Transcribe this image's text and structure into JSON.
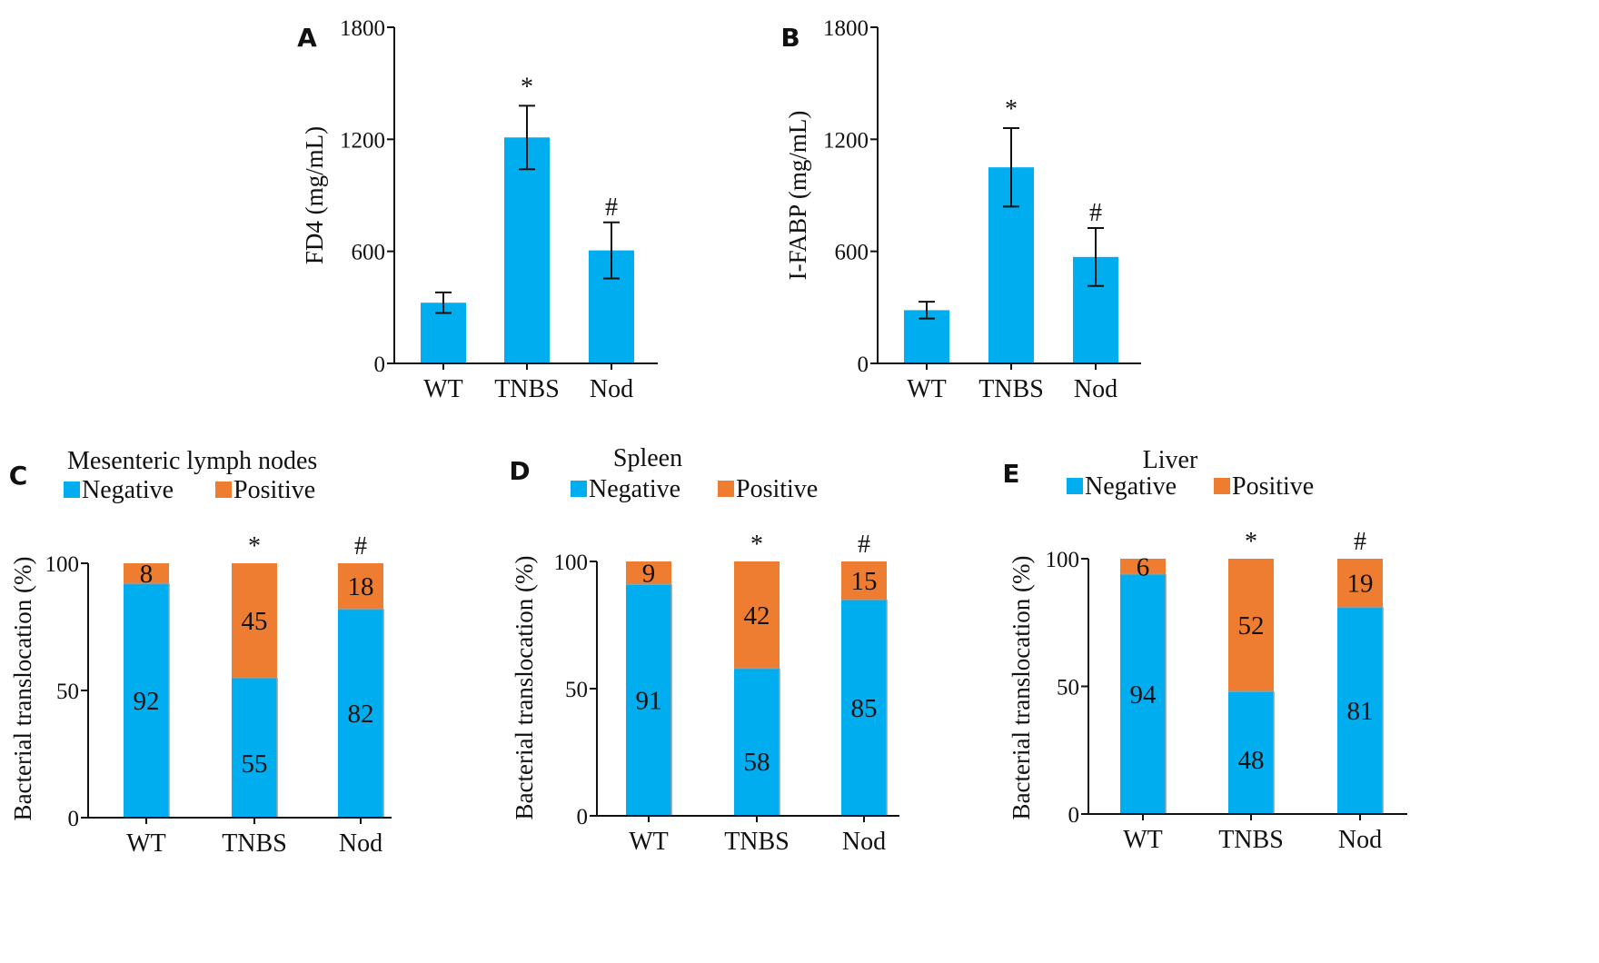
{
  "colors": {
    "blue": "#00aeef",
    "orange": "#ee7d31",
    "axis": "#111111"
  },
  "chart_data": [
    {
      "panel": "A",
      "type": "bar",
      "ylabel": "FD4 (mg/mL)",
      "categories": [
        "WT",
        "TNBS",
        "Nod"
      ],
      "values": [
        325,
        1210,
        605
      ],
      "error": [
        55,
        170,
        150
      ],
      "significance": [
        "",
        "*",
        "#"
      ],
      "ylim": [
        0,
        1800
      ],
      "yticks": [
        0,
        600,
        1200,
        1800
      ]
    },
    {
      "panel": "B",
      "type": "bar",
      "ylabel": "I-FABP (mg/mL)",
      "categories": [
        "WT",
        "TNBS",
        "Nod"
      ],
      "values": [
        285,
        1050,
        570
      ],
      "error": [
        45,
        210,
        155
      ],
      "significance": [
        "",
        "*",
        "#"
      ],
      "ylim": [
        0,
        1800
      ],
      "yticks": [
        0,
        600,
        1200,
        1800
      ]
    },
    {
      "panel": "C",
      "type": "bar",
      "stacked": true,
      "title": "Mesenteric lymph nodes",
      "ylabel": "Bacterial translocation (%)",
      "categories": [
        "WT",
        "TNBS",
        "Nod"
      ],
      "series": [
        {
          "name": "Negative",
          "values": [
            92,
            55,
            82
          ]
        },
        {
          "name": "Positive",
          "values": [
            8,
            45,
            18
          ]
        }
      ],
      "significance": [
        "",
        "*",
        "#"
      ],
      "ylim": [
        0,
        100
      ],
      "yticks": [
        0,
        50,
        100
      ]
    },
    {
      "panel": "D",
      "type": "bar",
      "stacked": true,
      "title": "Spleen",
      "ylabel": "Bacterial translocation (%)",
      "categories": [
        "WT",
        "TNBS",
        "Nod"
      ],
      "series": [
        {
          "name": "Negative",
          "values": [
            91,
            58,
            85
          ]
        },
        {
          "name": "Positive",
          "values": [
            9,
            42,
            15
          ]
        }
      ],
      "significance": [
        "",
        "*",
        "#"
      ],
      "ylim": [
        0,
        100
      ],
      "yticks": [
        0,
        50,
        100
      ]
    },
    {
      "panel": "E",
      "type": "bar",
      "stacked": true,
      "title": "Liver",
      "ylabel": "Bacterial translocation (%)",
      "categories": [
        "WT",
        "TNBS",
        "Nod"
      ],
      "series": [
        {
          "name": "Negative",
          "values": [
            94,
            48,
            81
          ]
        },
        {
          "name": "Positive",
          "values": [
            6,
            52,
            19
          ]
        }
      ],
      "significance": [
        "",
        "*",
        "#"
      ],
      "ylim": [
        0,
        100
      ],
      "yticks": [
        0,
        50,
        100
      ]
    }
  ]
}
